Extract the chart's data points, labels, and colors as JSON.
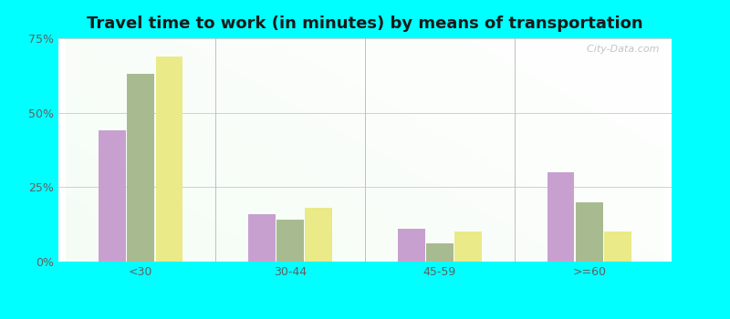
{
  "title": "Travel time to work (in minutes) by means of transportation",
  "categories": [
    "<30",
    "30-44",
    "45-59",
    ">=60"
  ],
  "series": {
    "Public transportation - Mississippi": [
      44,
      16,
      11,
      30
    ],
    "Other means - Leakesville": [
      63,
      14,
      6,
      20
    ],
    "Other means - Mississippi": [
      69,
      18,
      10,
      10
    ]
  },
  "colors": {
    "Public transportation - Mississippi": "#c8a0d0",
    "Other means - Leakesville": "#a8bb90",
    "Other means - Mississippi": "#eaea88"
  },
  "legend_colors": {
    "Public transportation - Mississippi": "#f0a0c0",
    "Other means - Leakesville": "#c8c898",
    "Other means - Mississippi": "#e8d830"
  },
  "ylim": [
    0,
    75
  ],
  "yticks": [
    0,
    25,
    50,
    75
  ],
  "ytick_labels": [
    "0%",
    "25%",
    "50%",
    "75%"
  ],
  "outer_background": "#00ffff",
  "bar_width": 0.18,
  "title_fontsize": 13,
  "grid_color": "#d0d0d0",
  "separator_color": "#c0c0c0"
}
